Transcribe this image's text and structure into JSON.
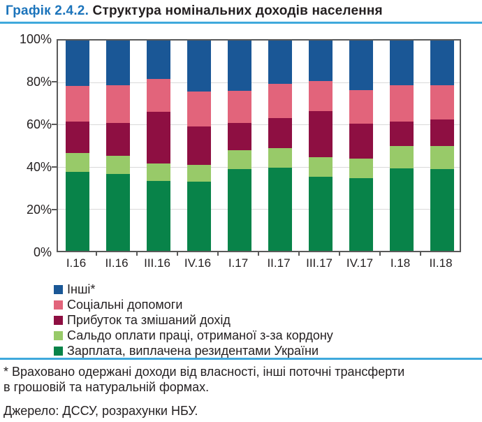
{
  "title": {
    "prefix": "Графік 2.4.2.",
    "main": " Структура номінальних доходів населення"
  },
  "chart_data": {
    "type": "bar",
    "stacked": true,
    "title": "Структура номінальних доходів населення",
    "unit": "%",
    "ylim": [
      0,
      100
    ],
    "y_ticks": [
      "100%",
      "80%",
      "60%",
      "40%",
      "20%",
      "0%"
    ],
    "grid": "horizontal",
    "legend_position": "bottom-left",
    "categories": [
      "I.16",
      "II.16",
      "III.16",
      "IV.16",
      "I.17",
      "II.17",
      "III.17",
      "IV.17",
      "I.18",
      "II.18"
    ],
    "series": [
      {
        "name": "Інші*",
        "color": "#1A5796",
        "values": [
          21.5,
          21.1,
          18.3,
          24.1,
          24.0,
          20.5,
          19.2,
          23.5,
          21.3,
          21.1
        ]
      },
      {
        "name": "Соціальні допомоги",
        "color": "#E2647B",
        "values": [
          17.0,
          18.2,
          15.7,
          16.9,
          15.2,
          16.5,
          14.2,
          16.1,
          17.4,
          16.3
        ]
      },
      {
        "name": "Прибуток та змішаний дохід",
        "color": "#8E0F42",
        "values": [
          15.1,
          15.4,
          24.5,
          18.0,
          12.8,
          14.3,
          22.1,
          16.4,
          11.6,
          12.8
        ]
      },
      {
        "name": "Сальдо оплати праці, отриманої з-за кордону",
        "color": "#98CA69",
        "values": [
          9.0,
          8.8,
          8.2,
          8.2,
          9.2,
          9.2,
          9.3,
          9.4,
          10.5,
          10.8
        ]
      },
      {
        "name": "Зарплата, виплачена резидентами України",
        "color": "#088349",
        "values": [
          37.4,
          36.5,
          33.3,
          32.8,
          38.8,
          39.5,
          35.2,
          34.6,
          39.2,
          39.0
        ]
      }
    ]
  },
  "footnote": "* Враховано одержані доходи від власності, інші поточні трансферти\nв грошовій та натуральній формах.",
  "source": "Джерело: ДССУ, розрахунки НБУ.",
  "colors": {
    "accent_line": "#3FA9DC",
    "title_prefix": "#1C74BB",
    "text": "#231F20",
    "axis": "#595959",
    "gridline": "#D9D9D9"
  }
}
